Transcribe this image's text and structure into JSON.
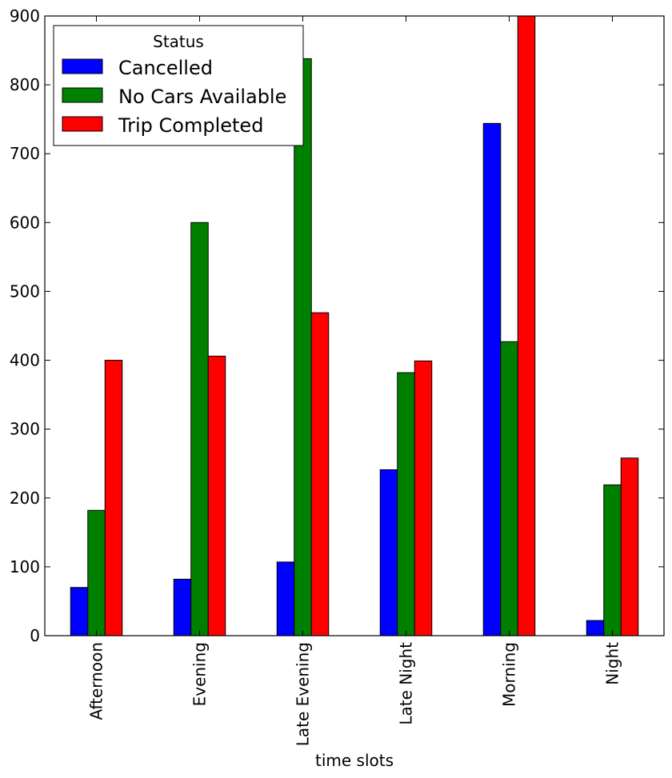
{
  "chart_data": {
    "type": "bar",
    "xlabel": "time slots",
    "ylabel": "",
    "ylim": [
      0,
      900
    ],
    "yticks": [
      0,
      100,
      200,
      300,
      400,
      500,
      600,
      700,
      800,
      900
    ],
    "categories": [
      "Afternoon",
      "Evening",
      "Late Evening",
      "Late Night",
      "Morning",
      "Night"
    ],
    "series": [
      {
        "name": "Cancelled",
        "color": "#0000ff",
        "values": [
          70,
          82,
          107,
          241,
          744,
          22
        ]
      },
      {
        "name": "No Cars Available",
        "color": "#008000",
        "values": [
          182,
          600,
          838,
          382,
          427,
          219
        ]
      },
      {
        "name": "Trip Completed",
        "color": "#ff0000",
        "values": [
          400,
          406,
          469,
          399,
          900,
          258
        ]
      }
    ],
    "legend": {
      "title": "Status",
      "position": "top-left"
    },
    "grid": false
  }
}
